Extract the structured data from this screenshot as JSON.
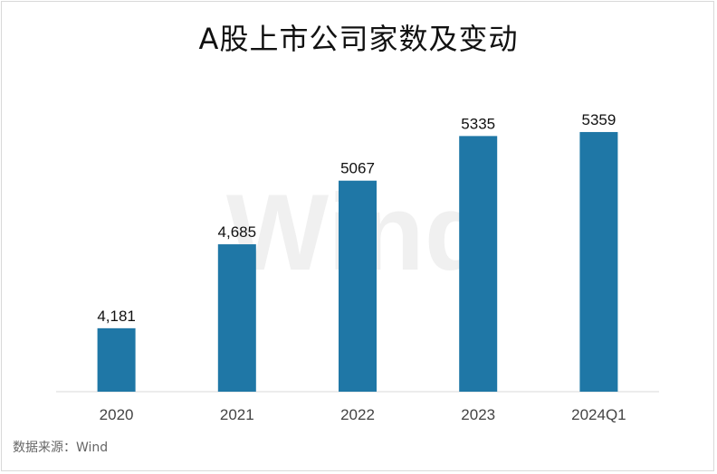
{
  "chart_data": {
    "type": "bar",
    "title": "A股上市公司家数及变动",
    "categories": [
      "2020",
      "2021",
      "2022",
      "2023",
      "2024Q1"
    ],
    "series": [
      {
        "values": [
          4181,
          4685,
          5067,
          5335,
          5359
        ],
        "labels": [
          "4,181",
          "4,685",
          "5067",
          "5335",
          "5359"
        ]
      }
    ],
    "ylim": [
      3800,
      5500
    ],
    "grid": false,
    "legend": "none",
    "bar_color": "#1f77a6",
    "watermark": "Wind",
    "source": "数据来源：Wind"
  }
}
